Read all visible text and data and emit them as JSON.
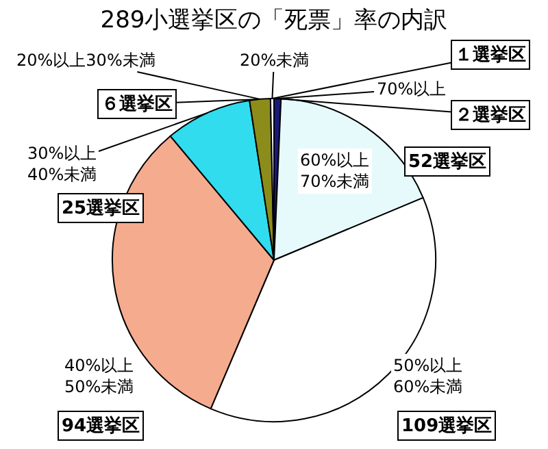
{
  "chart_data": {
    "type": "pie",
    "title": "289小選挙区の「死票」率の内訳",
    "categories": [
      "70%以上",
      "60%以上\n70%未満",
      "50%以上\n60%未満",
      "40%以上\n50%未満",
      "30%以上\n40%未満",
      "20%以上30%未満",
      "20%未満"
    ],
    "values": [
      2,
      52,
      109,
      94,
      25,
      6,
      1
    ],
    "value_labels": [
      "２選挙区",
      "52選挙区",
      "109選挙区",
      "94選挙区",
      "25選挙区",
      "６選挙区",
      "１選挙区"
    ],
    "colors": [
      "#1a1a7a",
      "#e6fafc",
      "#ffffff",
      "#f5ab8e",
      "#30dcee",
      "#8c8c1a",
      "#ffffff"
    ],
    "legend": false
  }
}
